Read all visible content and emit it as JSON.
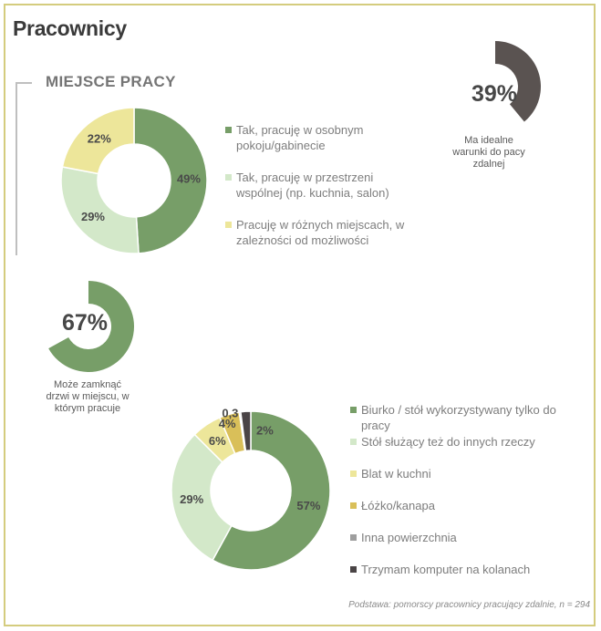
{
  "title": "Pracownicy",
  "section_title": "MIEJSCE PRACY",
  "chart_data": [
    {
      "type": "pie",
      "donut": true,
      "categories": [
        "Tak, pracuję w osobnym pokoju/gabinecie",
        "Tak, pracuję w przestrzeni wspólnej (np. kuchnia, salon)",
        "Pracuję w różnych miejscach, w zależności od możliwości"
      ],
      "values": [
        49,
        29,
        22
      ],
      "labels": [
        "49%",
        "29%",
        "22%"
      ],
      "colors": [
        "#779e68",
        "#d3e8c9",
        "#ede69a"
      ],
      "legend": "right"
    },
    {
      "type": "pie",
      "donut": true,
      "partial": true,
      "values": [
        39
      ],
      "labels": [
        "39%"
      ],
      "caption": "Ma idealne warunki do pacy zdalnej",
      "colors": [
        "#5a5351"
      ]
    },
    {
      "type": "pie",
      "donut": true,
      "partial": true,
      "values": [
        67
      ],
      "labels": [
        "67%"
      ],
      "caption": "Może zamknąć drzwi w miejscu, w którym pracuje",
      "colors": [
        "#779e68"
      ]
    },
    {
      "type": "pie",
      "donut": true,
      "categories": [
        "Biurko / stół wykorzystywany tylko do pracy",
        "Stół służący też do innych rzeczy",
        "Blat w kuchni",
        "Łóżko/kanapa",
        "Inna powierzchnia",
        "Trzymam komputer na kolanach"
      ],
      "values": [
        57,
        29,
        6,
        4,
        0.3,
        2
      ],
      "labels": [
        "57%",
        "29%",
        "6%",
        "4%",
        "0,3",
        "2%"
      ],
      "colors": [
        "#779e68",
        "#d3e8c9",
        "#ede69a",
        "#d9bf59",
        "#9e9e9e",
        "#4a4446"
      ],
      "legend": "right"
    }
  ],
  "footer": "Podstawa: pomorscy pracownicy pracujący zdalnie, n = 294"
}
